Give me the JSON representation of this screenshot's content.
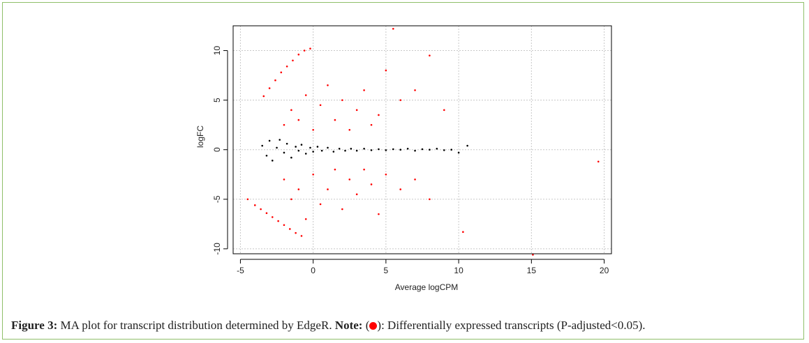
{
  "figure": {
    "label": "Figure 3:",
    "text": " MA plot for transcript distribution determined by EdgeR. ",
    "note_label": "Note:",
    "note_open": " (",
    "note_close": "): Differentially expressed transcripts (P-adjusted<0.05)."
  },
  "colors": {
    "significant": "#ff0000",
    "nonsignificant": "#000000",
    "grid": "#c8c8c8",
    "frame": "#8fbf6a"
  },
  "chart_data": {
    "type": "scatter",
    "xlabel": "Average logCPM",
    "ylabel": "logFC",
    "xlim": [
      -5.5,
      20.5
    ],
    "ylim": [
      -10.5,
      12.5
    ],
    "xticks": [
      "-5",
      "0",
      "5",
      "10",
      "15",
      "20"
    ],
    "yticks": [
      "-10",
      "-5",
      "0",
      "5",
      "10"
    ],
    "grid": true,
    "series": [
      {
        "role": "nonsignificant",
        "color": "#000000",
        "points": [
          [
            -3.5,
            0.4
          ],
          [
            -3.2,
            -0.6
          ],
          [
            -3.0,
            0.9
          ],
          [
            -2.8,
            -1.1
          ],
          [
            -2.5,
            0.2
          ],
          [
            -2.3,
            1.0
          ],
          [
            -2.0,
            -0.3
          ],
          [
            -1.8,
            0.6
          ],
          [
            -1.5,
            -0.8
          ],
          [
            -1.2,
            0.3
          ],
          [
            -1.0,
            -0.1
          ],
          [
            -0.8,
            0.5
          ],
          [
            -0.5,
            -0.4
          ],
          [
            -0.2,
            0.2
          ],
          [
            0.0,
            -0.2
          ],
          [
            0.3,
            0.3
          ],
          [
            0.6,
            -0.1
          ],
          [
            1.0,
            0.2
          ],
          [
            1.4,
            -0.2
          ],
          [
            1.8,
            0.1
          ],
          [
            2.2,
            -0.1
          ],
          [
            2.6,
            0.1
          ],
          [
            3.0,
            -0.1
          ],
          [
            3.5,
            0.1
          ],
          [
            4.0,
            -0.05
          ],
          [
            4.5,
            0.05
          ],
          [
            5.0,
            -0.05
          ],
          [
            5.5,
            0.05
          ],
          [
            6.0,
            0.0
          ],
          [
            6.5,
            0.1
          ],
          [
            7.0,
            -0.1
          ],
          [
            7.5,
            0.05
          ],
          [
            8.0,
            0.0
          ],
          [
            8.5,
            0.1
          ],
          [
            9.0,
            -0.05
          ],
          [
            9.5,
            0.0
          ],
          [
            10.0,
            -0.3
          ],
          [
            10.6,
            0.4
          ]
        ]
      },
      {
        "role": "significant",
        "color": "#ff0000",
        "points": [
          [
            -4.5,
            -5.0
          ],
          [
            -4.0,
            -5.6
          ],
          [
            -3.6,
            -6.0
          ],
          [
            -3.2,
            -6.4
          ],
          [
            -2.8,
            -6.8
          ],
          [
            -2.4,
            -7.2
          ],
          [
            -2.0,
            -7.6
          ],
          [
            -1.6,
            -8.0
          ],
          [
            -1.2,
            -8.4
          ],
          [
            -0.8,
            -8.7
          ],
          [
            -3.4,
            5.4
          ],
          [
            -3.0,
            6.2
          ],
          [
            -2.6,
            7.0
          ],
          [
            -2.2,
            7.8
          ],
          [
            -1.8,
            8.4
          ],
          [
            -1.4,
            9.0
          ],
          [
            -1.0,
            9.6
          ],
          [
            -0.6,
            10.0
          ],
          [
            -0.2,
            10.2
          ],
          [
            -2.0,
            2.5
          ],
          [
            -1.5,
            4.0
          ],
          [
            -1.0,
            3.0
          ],
          [
            -0.5,
            5.5
          ],
          [
            0.0,
            2.0
          ],
          [
            0.5,
            4.5
          ],
          [
            1.0,
            6.5
          ],
          [
            1.5,
            3.0
          ],
          [
            2.0,
            5.0
          ],
          [
            2.5,
            2.0
          ],
          [
            3.0,
            4.0
          ],
          [
            3.5,
            6.0
          ],
          [
            4.0,
            2.5
          ],
          [
            4.5,
            3.5
          ],
          [
            5.0,
            8.0
          ],
          [
            5.5,
            12.2
          ],
          [
            6.0,
            5.0
          ],
          [
            7.0,
            6.0
          ],
          [
            8.0,
            9.5
          ],
          [
            9.0,
            4.0
          ],
          [
            -2.0,
            -3.0
          ],
          [
            -1.5,
            -5.0
          ],
          [
            -1.0,
            -4.0
          ],
          [
            -0.5,
            -7.0
          ],
          [
            0.0,
            -2.5
          ],
          [
            0.5,
            -5.5
          ],
          [
            1.0,
            -4.0
          ],
          [
            1.5,
            -2.0
          ],
          [
            2.0,
            -6.0
          ],
          [
            2.5,
            -3.0
          ],
          [
            3.0,
            -4.5
          ],
          [
            3.5,
            -2.0
          ],
          [
            4.0,
            -3.5
          ],
          [
            4.5,
            -6.5
          ],
          [
            5.0,
            -2.5
          ],
          [
            6.0,
            -4.0
          ],
          [
            7.0,
            -3.0
          ],
          [
            8.0,
            -5.0
          ],
          [
            10.3,
            -8.3
          ],
          [
            15.1,
            -10.6
          ],
          [
            19.6,
            -1.2
          ]
        ]
      }
    ]
  }
}
